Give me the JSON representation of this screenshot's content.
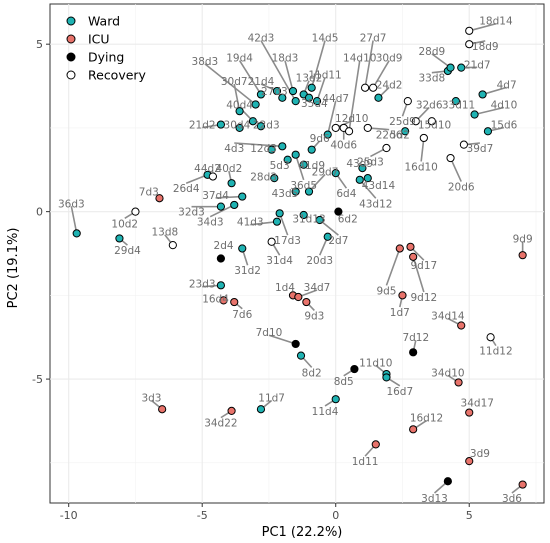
{
  "chart_data": {
    "type": "scatter",
    "xlabel": "PC1 (22.2%)",
    "ylabel": "PC2 (19.1%)",
    "xlim": [
      -10.7,
      7.8
    ],
    "ylim": [
      -8.7,
      6.2
    ],
    "xticks": [
      -10,
      -5,
      0,
      5
    ],
    "yticks": [
      -5,
      0,
      5
    ],
    "grid": true,
    "legend_position": "top-left",
    "colors": {
      "Ward": "#1fb3b3",
      "ICU": "#e8736b",
      "Dying": "#000000",
      "Recovery": "#ffffff"
    },
    "legend": [
      {
        "name": "Ward",
        "color": "#1fb3b3"
      },
      {
        "name": "ICU",
        "color": "#e8736b"
      },
      {
        "name": "Dying",
        "color": "#000000"
      },
      {
        "name": "Recovery",
        "color": "#ffffff"
      }
    ],
    "points": [
      {
        "x": -9.7,
        "y": -0.65,
        "group": "Ward",
        "label": "36d3",
        "lx": -9.9,
        "ly": 0.25
      },
      {
        "x": -8.1,
        "y": -0.8,
        "group": "Ward",
        "label": "29d4",
        "lx": -7.8,
        "ly": -1.15
      },
      {
        "x": -7.5,
        "y": 0.0,
        "group": "Recovery",
        "label": "10d2",
        "lx": -7.9,
        "ly": -0.35
      },
      {
        "x": -6.6,
        "y": 0.4,
        "group": "ICU",
        "label": "7d3",
        "lx": -7.0,
        "ly": 0.6
      },
      {
        "x": -6.1,
        "y": -1.0,
        "group": "Recovery",
        "label": "13d8",
        "lx": -6.4,
        "ly": -0.6
      },
      {
        "x": -4.8,
        "y": 1.1,
        "group": "Ward",
        "label": "26d4",
        "lx": -5.6,
        "ly": 0.7
      },
      {
        "x": -4.6,
        "y": 1.05,
        "group": "Recovery",
        "label": "44d2",
        "lx": -4.8,
        "ly": 1.3
      },
      {
        "x": -3.9,
        "y": 0.85,
        "group": "Ward",
        "label": "40d2",
        "lx": -4.0,
        "ly": 1.3
      },
      {
        "x": -3.5,
        "y": 0.45,
        "group": "Ward",
        "label": "37d4",
        "lx": -4.5,
        "ly": 0.5
      },
      {
        "x": -4.3,
        "y": 0.15,
        "group": "Ward",
        "label": "32d3",
        "lx": -5.4,
        "ly": 0.0
      },
      {
        "x": -3.8,
        "y": 0.2,
        "group": "Ward",
        "label": "34d3",
        "lx": -4.7,
        "ly": -0.3
      },
      {
        "x": -2.2,
        "y": -0.3,
        "group": "Ward",
        "label": "41d3",
        "lx": -3.2,
        "ly": -0.3
      },
      {
        "x": -4.3,
        "y": -1.4,
        "group": "Dying",
        "label": "2d4",
        "lx": -4.2,
        "ly": -1.0
      },
      {
        "x": -3.5,
        "y": -1.1,
        "group": "Ward",
        "label": "31d2",
        "lx": -3.3,
        "ly": -1.75
      },
      {
        "x": -2.4,
        "y": -0.9,
        "group": "Recovery",
        "label": "31d4",
        "lx": -2.1,
        "ly": -1.45
      },
      {
        "x": -2.1,
        "y": -0.05,
        "group": "Ward",
        "label": "17d3",
        "lx": -1.8,
        "ly": -0.85
      },
      {
        "x": -1.2,
        "y": -0.1,
        "group": "Ward",
        "label": "31d13",
        "lx": -1.0,
        "ly": -0.2
      },
      {
        "x": -0.3,
        "y": -0.75,
        "group": "Ward",
        "label": "20d3",
        "lx": -0.6,
        "ly": -1.45
      },
      {
        "x": -0.6,
        "y": -0.25,
        "group": "Ward",
        "label": "2d7",
        "lx": 0.1,
        "ly": -0.85
      },
      {
        "x": 0.1,
        "y": 0.0,
        "group": "Dying",
        "label": "6d2",
        "lx": 0.45,
        "ly": -0.2
      },
      {
        "x": -4.3,
        "y": -2.2,
        "group": "Ward",
        "label": "23d3",
        "lx": -5.0,
        "ly": -2.15
      },
      {
        "x": -4.2,
        "y": -2.65,
        "group": "ICU",
        "label": "16d4",
        "lx": -4.5,
        "ly": -2.6
      },
      {
        "x": -3.8,
        "y": -2.7,
        "group": "ICU",
        "label": "7d6",
        "lx": -3.5,
        "ly": -3.05
      },
      {
        "x": -1.6,
        "y": -2.5,
        "group": "ICU",
        "label": "1d4",
        "lx": -1.9,
        "ly": -2.25
      },
      {
        "x": -1.4,
        "y": -2.55,
        "group": "ICU",
        "label": "34d7",
        "lx": -0.7,
        "ly": -2.25
      },
      {
        "x": -1.1,
        "y": -2.7,
        "group": "ICU",
        "label": "9d3",
        "lx": -0.8,
        "ly": -3.1
      },
      {
        "x": -1.5,
        "y": -3.95,
        "group": "Dying",
        "label": "7d10",
        "lx": -2.5,
        "ly": -3.6
      },
      {
        "x": -1.3,
        "y": -4.3,
        "group": "Ward",
        "label": "8d2",
        "lx": -0.9,
        "ly": -4.8
      },
      {
        "x": 0.7,
        "y": -4.7,
        "group": "Dying",
        "label": "8d5",
        "lx": 0.3,
        "ly": -5.05
      },
      {
        "x": 0.0,
        "y": -5.6,
        "group": "Ward",
        "label": "11d4",
        "lx": -0.4,
        "ly": -5.95
      },
      {
        "x": 1.9,
        "y": -4.85,
        "group": "Ward",
        "label": "11d10",
        "lx": 1.5,
        "ly": -4.5
      },
      {
        "x": 1.9,
        "y": -4.95,
        "group": "Ward",
        "label": "16d7",
        "lx": 2.4,
        "ly": -5.35
      },
      {
        "x": 2.4,
        "y": -1.1,
        "group": "ICU",
        "label": "9d5",
        "lx": 1.9,
        "ly": -2.35
      },
      {
        "x": 2.8,
        "y": -1.05,
        "group": "ICU",
        "label": "9d17",
        "lx": 3.3,
        "ly": -1.6
      },
      {
        "x": 2.9,
        "y": -1.35,
        "group": "ICU",
        "label": "9d12",
        "lx": 3.3,
        "ly": -2.55
      },
      {
        "x": 2.5,
        "y": -2.5,
        "group": "ICU",
        "label": "1d7",
        "lx": 2.4,
        "ly": -3.0
      },
      {
        "x": 2.9,
        "y": -4.2,
        "group": "Dying",
        "label": "7d12",
        "lx": 3.0,
        "ly": -3.75
      },
      {
        "x": 4.7,
        "y": -3.4,
        "group": "ICU",
        "label": "34d14",
        "lx": 4.2,
        "ly": -3.1
      },
      {
        "x": 5.8,
        "y": -3.75,
        "group": "Recovery",
        "label": "11d12",
        "lx": 6.0,
        "ly": -4.15
      },
      {
        "x": 7.0,
        "y": -1.3,
        "group": "ICU",
        "label": "9d9",
        "lx": 7.0,
        "ly": -0.8
      },
      {
        "x": 4.6,
        "y": -5.1,
        "group": "ICU",
        "label": "34d10",
        "lx": 4.2,
        "ly": -4.8
      },
      {
        "x": 5.0,
        "y": -6.0,
        "group": "ICU",
        "label": "34d17",
        "lx": 5.3,
        "ly": -5.7
      },
      {
        "x": 2.9,
        "y": -6.5,
        "group": "ICU",
        "label": "16d12",
        "lx": 3.4,
        "ly": -6.15
      },
      {
        "x": 1.5,
        "y": -6.95,
        "group": "ICU",
        "label": "1d11",
        "lx": 1.1,
        "ly": -7.45
      },
      {
        "x": 5.0,
        "y": -7.45,
        "group": "ICU",
        "label": "3d9",
        "lx": 5.4,
        "ly": -7.2
      },
      {
        "x": 4.2,
        "y": -8.05,
        "group": "Dying",
        "label": "3d13",
        "lx": 3.7,
        "ly": -8.55
      },
      {
        "x": 7.0,
        "y": -8.15,
        "group": "ICU",
        "label": "3d6",
        "lx": 6.6,
        "ly": -8.55
      },
      {
        "x": -6.5,
        "y": -5.9,
        "group": "ICU",
        "label": "3d3",
        "lx": -6.9,
        "ly": -5.55
      },
      {
        "x": -3.9,
        "y": -5.95,
        "group": "ICU",
        "label": "34d22",
        "lx": -4.3,
        "ly": -6.3
      },
      {
        "x": -2.8,
        "y": -5.9,
        "group": "Ward",
        "label": "11d7",
        "lx": -2.4,
        "ly": -5.55
      },
      {
        "x": -4.3,
        "y": 2.6,
        "group": "Ward",
        "label": "21d2",
        "lx": -5.0,
        "ly": 2.6
      },
      {
        "x": -3.1,
        "y": 2.7,
        "group": "Ward",
        "label": "40d4",
        "lx": -3.6,
        "ly": 3.2
      },
      {
        "x": -3.6,
        "y": 2.5,
        "group": "Ward",
        "label": "30d4",
        "lx": -3.7,
        "ly": 2.6
      },
      {
        "x": -2.8,
        "y": 2.55,
        "group": "Ward",
        "label": "22d3",
        "lx": -2.6,
        "ly": 2.6
      },
      {
        "x": -2.4,
        "y": 1.85,
        "group": "Ward",
        "label": "12d3",
        "lx": -2.7,
        "ly": 1.9
      },
      {
        "x": -2.0,
        "y": 1.95,
        "group": "Ward",
        "label": "4d3",
        "lx": -3.8,
        "ly": 1.9
      },
      {
        "x": -1.8,
        "y": 1.55,
        "group": "Ward",
        "label": "5d3",
        "lx": -2.1,
        "ly": 1.4
      },
      {
        "x": -2.3,
        "y": 1.0,
        "group": "Ward",
        "label": "28d3",
        "lx": -2.7,
        "ly": 1.05
      },
      {
        "x": -1.5,
        "y": 1.7,
        "group": "Ward",
        "label": "36d5",
        "lx": -1.2,
        "ly": 0.8
      },
      {
        "x": -1.2,
        "y": 1.4,
        "group": "Ward",
        "label": "41d9",
        "lx": -0.9,
        "ly": 1.4
      },
      {
        "x": -0.9,
        "y": 1.85,
        "group": "Ward",
        "label": "9d6",
        "lx": -0.6,
        "ly": 2.2
      },
      {
        "x": -1.5,
        "y": 0.6,
        "group": "Ward",
        "label": "43d5",
        "lx": -1.9,
        "ly": 0.55
      },
      {
        "x": -1.0,
        "y": 0.6,
        "group": "Ward",
        "label": "29d7",
        "lx": -0.4,
        "ly": 1.2
      },
      {
        "x": 0.0,
        "y": 1.15,
        "group": "Ward",
        "label": "6d4",
        "lx": 0.4,
        "ly": 0.55
      },
      {
        "x": 1.0,
        "y": 1.3,
        "group": "Ward",
        "label": "43d9",
        "lx": 0.9,
        "ly": 1.45
      },
      {
        "x": 1.2,
        "y": 1.0,
        "group": "Ward",
        "label": "43d14",
        "lx": 1.6,
        "ly": 0.8
      },
      {
        "x": 0.9,
        "y": 0.95,
        "group": "Ward",
        "label": "43d12",
        "lx": 1.5,
        "ly": 0.25
      },
      {
        "x": -3.6,
        "y": 3.0,
        "group": "Ward",
        "label": "30d7",
        "lx": -3.8,
        "ly": 3.9
      },
      {
        "x": -3.0,
        "y": 3.2,
        "group": "Ward",
        "label": "38d3",
        "lx": -4.9,
        "ly": 4.5
      },
      {
        "x": -2.8,
        "y": 3.5,
        "group": "Ward",
        "label": "19d4",
        "lx": -3.6,
        "ly": 4.6
      },
      {
        "x": -2.2,
        "y": 3.6,
        "group": "Ward",
        "label": "21d4",
        "lx": -2.8,
        "ly": 3.9
      },
      {
        "x": -2.0,
        "y": 3.4,
        "group": "Ward",
        "label": "27d3",
        "lx": -2.3,
        "ly": 3.6
      },
      {
        "x": -1.5,
        "y": 3.3,
        "group": "Ward",
        "label": "42d3",
        "lx": -2.8,
        "ly": 5.2
      },
      {
        "x": -1.6,
        "y": 3.6,
        "group": "Ward",
        "label": "18d3",
        "lx": -1.9,
        "ly": 4.6
      },
      {
        "x": -1.2,
        "y": 3.5,
        "group": "Ward",
        "label": "13d2",
        "lx": -1.0,
        "ly": 4.0
      },
      {
        "x": -1.0,
        "y": 3.4,
        "group": "Ward",
        "label": "35d4",
        "lx": -0.8,
        "ly": 3.25
      },
      {
        "x": -0.9,
        "y": 3.7,
        "group": "Ward",
        "label": "14d5",
        "lx": -0.4,
        "ly": 5.2
      },
      {
        "x": -0.7,
        "y": 3.3,
        "group": "Ward",
        "label": "11d11",
        "lx": -0.4,
        "ly": 4.1
      },
      {
        "x": -0.3,
        "y": 2.3,
        "group": "Ward",
        "label": "44d7",
        "lx": 0.0,
        "ly": 3.4
      },
      {
        "x": 0.0,
        "y": 2.5,
        "group": "Recovery",
        "label": "12d10",
        "lx": 0.6,
        "ly": 2.8
      },
      {
        "x": 0.3,
        "y": 2.5,
        "group": "Recovery",
        "label": "40d6",
        "lx": 0.3,
        "ly": 2.0
      },
      {
        "x": 0.5,
        "y": 2.4,
        "group": "Recovery",
        "label": "14d10",
        "lx": 0.9,
        "ly": 4.6
      },
      {
        "x": 1.1,
        "y": 3.7,
        "group": "Recovery",
        "label": "27d7",
        "lx": 1.4,
        "ly": 5.2
      },
      {
        "x": 1.4,
        "y": 3.7,
        "group": "Recovery",
        "label": "30d9",
        "lx": 2.0,
        "ly": 4.6
      },
      {
        "x": 1.6,
        "y": 3.4,
        "group": "Ward",
        "label": "24d2",
        "lx": 2.0,
        "ly": 3.8
      },
      {
        "x": 1.2,
        "y": 2.5,
        "group": "Recovery",
        "label": "22d6",
        "lx": 2.0,
        "ly": 2.3
      },
      {
        "x": 1.9,
        "y": 1.9,
        "group": "Recovery",
        "label": "25d3",
        "lx": 1.3,
        "ly": 1.5
      },
      {
        "x": 2.6,
        "y": 2.4,
        "group": "Ward",
        "label": "5d2",
        "lx": 2.4,
        "ly": 2.3
      },
      {
        "x": 2.7,
        "y": 3.3,
        "group": "Recovery",
        "label": "25d9",
        "lx": 2.5,
        "ly": 2.7
      },
      {
        "x": 3.0,
        "y": 2.7,
        "group": "Recovery",
        "label": "32d6",
        "lx": 3.5,
        "ly": 3.2
      },
      {
        "x": 3.3,
        "y": 2.2,
        "group": "Recovery",
        "label": "16d10",
        "lx": 3.2,
        "ly": 1.35
      },
      {
        "x": 3.6,
        "y": 2.7,
        "group": "Recovery",
        "label": "15d10",
        "lx": 3.7,
        "ly": 2.6
      },
      {
        "x": 4.2,
        "y": 4.2,
        "group": "Ward",
        "label": "33d8",
        "lx": 3.6,
        "ly": 4.0
      },
      {
        "x": 4.3,
        "y": 4.3,
        "group": "Ward",
        "label": "28d9",
        "lx": 3.6,
        "ly": 4.8
      },
      {
        "x": 4.7,
        "y": 4.3,
        "group": "Ward",
        "label": "21d7",
        "lx": 5.3,
        "ly": 4.4
      },
      {
        "x": 4.5,
        "y": 3.3,
        "group": "Ward",
        "label": "33d11",
        "lx": 4.6,
        "ly": 3.2
      },
      {
        "x": 5.2,
        "y": 2.9,
        "group": "Ward",
        "label": "4d10",
        "lx": 6.3,
        "ly": 3.2
      },
      {
        "x": 5.5,
        "y": 3.5,
        "group": "Ward",
        "label": "4d7",
        "lx": 6.4,
        "ly": 3.8
      },
      {
        "x": 5.7,
        "y": 2.4,
        "group": "Ward",
        "label": "15d6",
        "lx": 6.3,
        "ly": 2.6
      },
      {
        "x": 4.8,
        "y": 2.0,
        "group": "Recovery",
        "label": "39d7",
        "lx": 5.4,
        "ly": 1.9
      },
      {
        "x": 4.3,
        "y": 1.6,
        "group": "Recovery",
        "label": "20d6",
        "lx": 4.7,
        "ly": 0.75
      },
      {
        "x": 5.0,
        "y": 5.4,
        "group": "Recovery",
        "label": "18d14",
        "lx": 6.0,
        "ly": 5.7
      },
      {
        "x": 5.0,
        "y": 5.0,
        "group": "Recovery",
        "label": "18d9",
        "lx": 5.6,
        "ly": 4.95
      }
    ]
  }
}
